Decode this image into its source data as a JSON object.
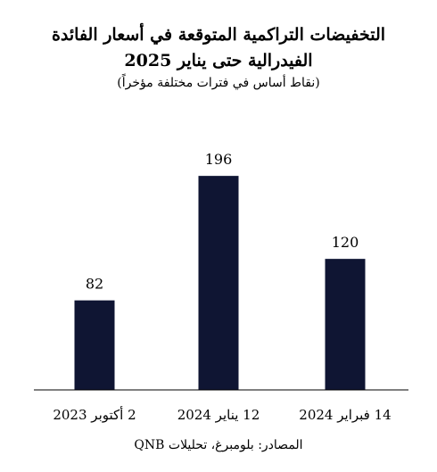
{
  "chart_data": {
    "type": "bar",
    "title_line1": "التخفيضات التراكمية المتوقعة في أسعار الفائدة",
    "title_line2": "الفيدرالية حتى يناير 2025",
    "subtitle": "(نقاط أساس في فترات مختلفة مؤخراً)",
    "categories": [
      "2 أكتوبر 2023",
      "12 يناير 2024",
      "14 فبراير 2024"
    ],
    "values": [
      82,
      196,
      120
    ],
    "ylim": [
      0,
      210
    ],
    "grid": false,
    "bar_color": "#0f1533",
    "source": "المصادر: بلومبرغ، تحليلات QNB"
  }
}
